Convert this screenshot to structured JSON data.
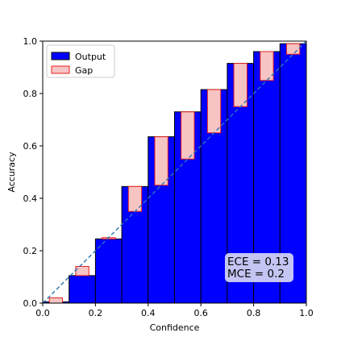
{
  "chart_data": {
    "type": "bar",
    "xlabel": "Confidence",
    "ylabel": "Accuracy",
    "xlim": [
      0.0,
      1.0
    ],
    "ylim": [
      0.0,
      1.0
    ],
    "xticks": [
      "0.0",
      "0.2",
      "0.4",
      "0.6",
      "0.8",
      "1.0"
    ],
    "yticks": [
      "0.0",
      "0.2",
      "0.4",
      "0.6",
      "0.8",
      "1.0"
    ],
    "grid": false,
    "legend_position": "top-left",
    "legend": [
      {
        "name": "Output",
        "color": "#0000ff",
        "edge": "#000000"
      },
      {
        "name": "Gap",
        "color": "#f7c4c4",
        "edge": "#e8201e"
      }
    ],
    "bins": [
      {
        "x0": 0.0,
        "x1": 0.1,
        "output": 0.005,
        "gap_bottom": 0.0,
        "gap_top": 0.02
      },
      {
        "x0": 0.1,
        "x1": 0.2,
        "output": 0.105,
        "gap_bottom": 0.105,
        "gap_top": 0.14
      },
      {
        "x0": 0.2,
        "x1": 0.3,
        "output": 0.245,
        "gap_bottom": 0.245,
        "gap_top": 0.25
      },
      {
        "x0": 0.3,
        "x1": 0.4,
        "output": 0.445,
        "gap_bottom": 0.35,
        "gap_top": 0.445
      },
      {
        "x0": 0.4,
        "x1": 0.5,
        "output": 0.635,
        "gap_bottom": 0.45,
        "gap_top": 0.635
      },
      {
        "x0": 0.5,
        "x1": 0.6,
        "output": 0.73,
        "gap_bottom": 0.55,
        "gap_top": 0.73
      },
      {
        "x0": 0.6,
        "x1": 0.7,
        "output": 0.815,
        "gap_bottom": 0.65,
        "gap_top": 0.815
      },
      {
        "x0": 0.7,
        "x1": 0.8,
        "output": 0.915,
        "gap_bottom": 0.75,
        "gap_top": 0.915
      },
      {
        "x0": 0.8,
        "x1": 0.9,
        "output": 0.96,
        "gap_bottom": 0.85,
        "gap_top": 0.96
      },
      {
        "x0": 0.9,
        "x1": 1.0,
        "output": 0.99,
        "gap_bottom": 0.95,
        "gap_top": 0.99
      }
    ],
    "reference_line": {
      "from": [
        0.0,
        0.0
      ],
      "to": [
        1.0,
        1.0
      ],
      "style": "dashed",
      "color": "#2a77b0"
    },
    "annotations": {
      "ece": "ECE = 0.13",
      "mce": "MCE = 0.2",
      "position": "bottom-right",
      "box_color": "#cfd0f2"
    },
    "colors": {
      "output_fill": "#0000ff",
      "output_edge": "#000000",
      "gap_fill": "#f7c4c4",
      "gap_edge": "#e8201e"
    }
  }
}
